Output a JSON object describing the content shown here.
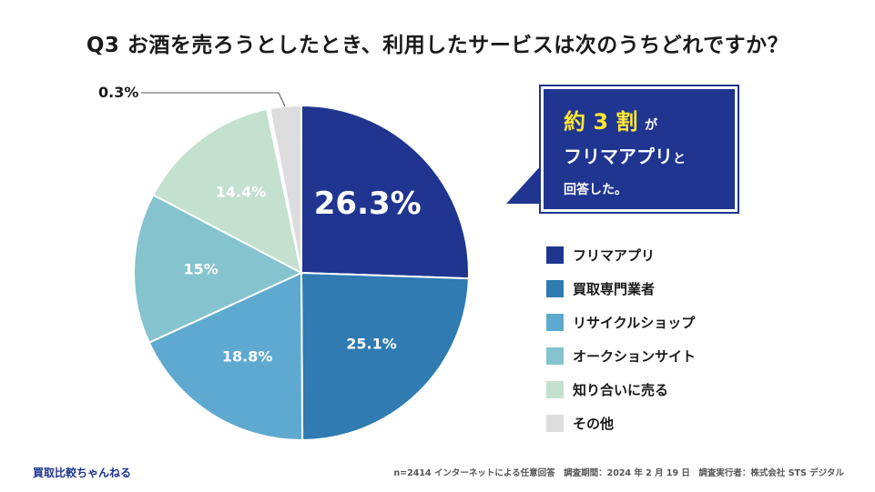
{
  "title": "Q3 お酒を売ろうとしたとき、利用したサービスは次のうちどれですか？",
  "chart_data": {
    "type": "pie",
    "title": "Q3 お酒を売ろうとしたとき、利用したサービスは次のうちどれですか？",
    "unit": "%",
    "slices": [
      {
        "label": "フリマアプリ",
        "value": 26.3,
        "label_text": "26.3%",
        "color": "#1f3590"
      },
      {
        "label": "買取専門業者",
        "value": 25.1,
        "label_text": "25.1%",
        "color": "#2f7bb2"
      },
      {
        "label": "リサイクルショップ",
        "value": 18.8,
        "label_text": "18.8%",
        "color": "#5ea9cf"
      },
      {
        "label": "オークションサイト",
        "value": 15,
        "label_text": "15%",
        "color": "#85c3cf"
      },
      {
        "label": "知り合いに売る",
        "value": 14.4,
        "label_text": "14.4%",
        "color": "#c4e0cf"
      },
      {
        "label": "その他",
        "value": 0.3,
        "label_text": "0.3%",
        "color": "#ffffff"
      },
      {
        "label": "その他",
        "value": 3.1,
        "label_text": "",
        "color": "#dddddd"
      }
    ],
    "legend_position": "right"
  },
  "callout": {
    "highlight": "約 3 割",
    "line1_suffix": "が",
    "line2_main": "フリマアプリ",
    "line2_suffix": "と",
    "line3": "回答した。"
  },
  "legend": [
    {
      "label": "フリマアプリ",
      "color": "#1f3590"
    },
    {
      "label": "買取専門業者",
      "color": "#2f7bb2"
    },
    {
      "label": "リサイクルショップ",
      "color": "#5ea9cf"
    },
    {
      "label": "オークションサイト",
      "color": "#85c3cf"
    },
    {
      "label": "知り合いに売る",
      "color": "#c4e0cf"
    },
    {
      "label": "その他",
      "color": "#dddddd"
    }
  ],
  "brand": "買取比較ちゃんねる",
  "footer": "n=2414 インターネットによる任意回答　調査期間：2024 年 2 月 19 日　調査実行者：株式会社 STS デジタル"
}
